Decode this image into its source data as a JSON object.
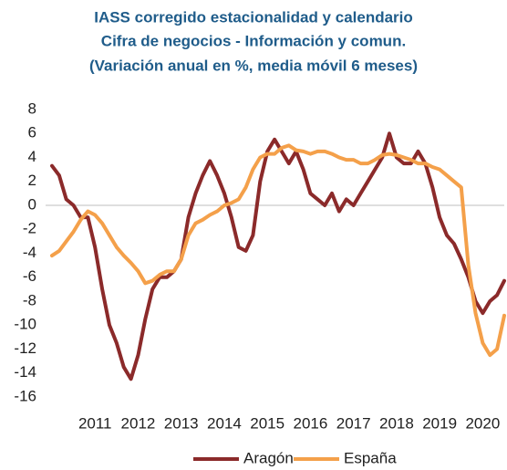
{
  "chart_data": {
    "type": "line",
    "title": [
      "IASS corregido estacionalidad y calendario",
      "Cifra de negocios - Información  y comun.",
      "(Variación anual en %, media móvil 6 meses)"
    ],
    "categories": [
      null,
      null,
      null,
      null,
      null,
      null,
      "2011",
      null,
      null,
      null,
      null,
      null,
      "2012",
      null,
      null,
      null,
      null,
      null,
      "2013",
      null,
      null,
      null,
      null,
      null,
      "2014",
      null,
      null,
      null,
      null,
      null,
      "2015",
      null,
      null,
      null,
      null,
      null,
      "2016",
      null,
      null,
      null,
      null,
      null,
      "2017",
      null,
      null,
      null,
      null,
      null,
      "2018",
      null,
      null,
      null,
      null,
      null,
      "2019",
      null,
      null,
      null,
      null,
      null,
      "2020",
      null,
      null,
      null
    ],
    "series": [
      {
        "name": "Aragón",
        "color": "#8b2a2a",
        "values": [
          3.3,
          2.5,
          0.5,
          0.0,
          -1.0,
          -1.0,
          -3.5,
          -7,
          -10,
          -11.5,
          -13.5,
          -14.5,
          -12.5,
          -9.5,
          -7,
          -6,
          -6,
          -5.5,
          -4.5,
          -1,
          1,
          2.5,
          3.7,
          2.5,
          1.0,
          -1,
          -3.5,
          -3.8,
          -2.5,
          2,
          4.5,
          5.5,
          4.5,
          3.5,
          4.5,
          3,
          1,
          0.5,
          0,
          1,
          -0.5,
          0.5,
          0,
          1,
          2,
          3,
          4,
          6,
          4,
          3.5,
          3.5,
          4.5,
          3.5,
          1.5,
          -1,
          -2.5,
          -3.2,
          -4.5,
          -6,
          -8,
          -9,
          -8,
          -7.5,
          -6.3
        ]
      },
      {
        "name": "España",
        "color": "#f4a04a",
        "values": [
          -4.2,
          -3.8,
          -3.0,
          -2.2,
          -1.2,
          -0.5,
          -0.8,
          -1.5,
          -2.5,
          -3.5,
          -4.2,
          -4.8,
          -5.5,
          -6.5,
          -6.3,
          -5.8,
          -5.5,
          -5.5,
          -4.5,
          -2.5,
          -1.5,
          -1.2,
          -0.8,
          -0.5,
          0,
          0.2,
          0.5,
          1.5,
          3,
          4,
          4.3,
          4.3,
          4.8,
          5,
          4.6,
          4.5,
          4.3,
          4.5,
          4.5,
          4.3,
          4.0,
          3.8,
          3.8,
          3.5,
          3.5,
          3.8,
          4.2,
          4.3,
          4.2,
          4.0,
          3.8,
          3.5,
          3.5,
          3.2,
          3.0,
          2.5,
          2.0,
          1.5,
          -5,
          -9,
          -11.5,
          -12.5,
          -12,
          -9.2
        ]
      }
    ],
    "ylim": [
      -16,
      8
    ],
    "yticks": [
      -16,
      -14,
      -12,
      -10,
      -8,
      -6,
      -4,
      -2,
      0,
      2,
      4,
      6,
      8
    ],
    "grid": false,
    "legend": "bottom"
  }
}
